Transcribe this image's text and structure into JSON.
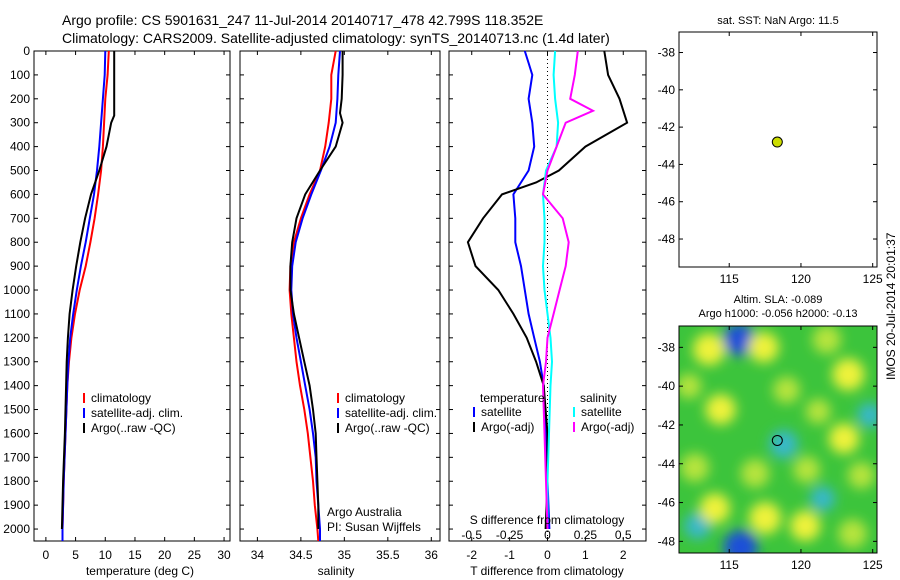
{
  "figure": {
    "title_line1": "Argo profile: CS 5901631_247 11-Jul-2014 20140717_478 42.799S 118.352E",
    "title_line2": "Climatology: CARS2009. Satellite-adjusted climatology: synTS_20140713.nc (1.4d later)",
    "side_label": "IMOS 20-Jul-2014 20:01:37",
    "credit_line1": "Argo Australia",
    "credit_line2": "PI: Susan Wijffels",
    "sst_title": "sat. SST: NaN Argo: 11.5",
    "sla_title1": "Altim. SLA: -0.089",
    "sla_title2": "Argo h1000: -0.056 h2000: -0.13"
  },
  "colors": {
    "climatology": "#ff0000",
    "satellite": "#0000ff",
    "argo": "#000000",
    "salinity_satellite": "#00ffff",
    "salinity_argo": "#ff00ff",
    "marker": "#ccdd00"
  },
  "chart_data": [
    {
      "type": "line",
      "xlabel": "temperature (deg C)",
      "ylabel": "",
      "xlim": [
        -2,
        31
      ],
      "ylim": [
        2050,
        0
      ],
      "xticks": [
        0,
        5,
        10,
        15,
        20,
        25,
        30
      ],
      "yticks": [
        0,
        100,
        200,
        300,
        400,
        500,
        600,
        700,
        800,
        900,
        1000,
        1100,
        1200,
        1300,
        1400,
        1500,
        1600,
        1700,
        1800,
        1900,
        2000
      ],
      "legend": [
        "climatology",
        "satellite-adj. clim.",
        "Argo(..raw -QC)"
      ],
      "series": [
        {
          "name": "climatology",
          "depth": [
            0,
            100,
            200,
            300,
            400,
            500,
            600,
            700,
            800,
            900,
            1000,
            1100,
            1200,
            1300,
            1400,
            1600,
            1800,
            2000,
            2050
          ],
          "values": [
            10.6,
            10.4,
            10.0,
            9.8,
            9.6,
            9.3,
            8.8,
            8.2,
            7.5,
            6.7,
            5.7,
            4.9,
            4.3,
            3.9,
            3.6,
            3.3,
            3.0,
            2.8,
            2.8
          ]
        },
        {
          "name": "satellite-adj. clim.",
          "depth": [
            0,
            100,
            200,
            300,
            400,
            500,
            600,
            700,
            800,
            900,
            1000,
            1100,
            1200,
            1300,
            1400,
            1600,
            1800,
            2000,
            2050
          ],
          "values": [
            10.0,
            9.9,
            9.6,
            9.3,
            9.0,
            8.6,
            8.1,
            7.4,
            6.7,
            5.9,
            5.2,
            4.6,
            4.1,
            3.8,
            3.6,
            3.3,
            3.0,
            2.8,
            2.8
          ]
        },
        {
          "name": "Argo(..raw -QC)",
          "depth": [
            0,
            100,
            200,
            270,
            300,
            400,
            500,
            600,
            700,
            800,
            900,
            1000,
            1100,
            1200,
            1300,
            1400,
            1600,
            1800,
            2000
          ],
          "values": [
            11.5,
            11.5,
            11.5,
            11.5,
            11.0,
            10.2,
            9.0,
            7.6,
            6.6,
            5.8,
            5.1,
            4.5,
            4.0,
            3.7,
            3.5,
            3.4,
            3.2,
            2.9,
            2.7
          ]
        }
      ]
    },
    {
      "type": "line",
      "xlabel": "salinity",
      "ylabel": "",
      "xlim": [
        33.8,
        36.1
      ],
      "ylim": [
        2050,
        0
      ],
      "xticks": [
        34,
        34.5,
        35,
        35.5,
        36
      ],
      "legend": [
        "climatology",
        "satellite-adj. clim.",
        "Argo(..raw -QC)"
      ],
      "series": [
        {
          "name": "climatology",
          "depth": [
            0,
            100,
            200,
            300,
            400,
            500,
            600,
            700,
            800,
            900,
            1000,
            1100,
            1200,
            1300,
            1400,
            1500,
            1600,
            1700,
            1800,
            1900,
            2000,
            2050
          ],
          "values": [
            34.9,
            34.85,
            34.85,
            34.82,
            34.78,
            34.72,
            34.6,
            34.5,
            34.42,
            34.38,
            34.37,
            34.39,
            34.42,
            34.45,
            34.49,
            34.54,
            34.58,
            34.61,
            34.64,
            34.66,
            34.69,
            34.7
          ]
        },
        {
          "name": "satellite-adj. clim.",
          "depth": [
            0,
            100,
            200,
            300,
            400,
            500,
            600,
            700,
            800,
            900,
            1000,
            1100,
            1200,
            1300,
            1400,
            1500,
            1600,
            1700,
            1800,
            1900,
            2000,
            2050
          ],
          "values": [
            34.95,
            34.93,
            34.92,
            34.9,
            34.83,
            34.73,
            34.62,
            34.52,
            34.44,
            34.4,
            34.39,
            34.41,
            34.45,
            34.5,
            34.55,
            34.6,
            34.64,
            34.67,
            34.68,
            34.7,
            34.72,
            34.72
          ]
        },
        {
          "name": "Argo(..raw -QC)",
          "depth": [
            0,
            100,
            200,
            260,
            300,
            400,
            500,
            600,
            700,
            800,
            900,
            1000,
            1100,
            1200,
            1300,
            1400,
            1500,
            1600,
            1700,
            1800,
            1900,
            2000
          ],
          "values": [
            34.98,
            34.98,
            34.97,
            34.95,
            34.98,
            34.9,
            34.72,
            34.55,
            34.45,
            34.4,
            34.38,
            34.38,
            34.42,
            34.48,
            34.54,
            34.6,
            34.64,
            34.67,
            34.68,
            34.69,
            34.7,
            34.7
          ]
        }
      ]
    },
    {
      "type": "line",
      "xlabel": "T difference from climatology",
      "xlabel2": "S difference from climatology",
      "xlim": [
        -2.6,
        2.6
      ],
      "ylim": [
        2050,
        0
      ],
      "xticks": [
        -2,
        -1,
        0,
        1,
        2
      ],
      "xticks2": [
        -0.5,
        -0.25,
        0,
        0.25,
        0.5
      ],
      "xticklabels2": [
        "-0.5",
        "-0.25",
        "0",
        "0.25",
        "0.5"
      ],
      "legend_temperature_header": "temperature",
      "legend_salinity_header": "salinity",
      "legend_temperature": [
        "satellite",
        "Argo(-adj)"
      ],
      "legend_salinity": [
        "satellite",
        "Argo(-adj)"
      ],
      "series": [
        {
          "name": "temperature satellite",
          "depth": [
            0,
            50,
            100,
            200,
            300,
            400,
            500,
            600,
            700,
            800,
            900,
            1000,
            1100,
            1200,
            1300,
            1400,
            1600,
            1800,
            2000
          ],
          "values": [
            -0.6,
            -0.5,
            -0.4,
            -0.5,
            -0.4,
            -0.35,
            -0.5,
            -0.9,
            -0.85,
            -0.85,
            -0.7,
            -0.6,
            -0.5,
            -0.35,
            -0.2,
            -0.1,
            -0.05,
            0.0,
            0.05
          ]
        },
        {
          "name": "temperature Argo(-adj)",
          "depth": [
            0,
            100,
            200,
            300,
            400,
            500,
            550,
            600,
            700,
            800,
            900,
            1000,
            1100,
            1200,
            1300,
            1400,
            1600,
            1800,
            2000
          ],
          "values": [
            1.5,
            1.6,
            1.9,
            2.1,
            1.0,
            0.3,
            -0.3,
            -1.2,
            -1.7,
            -2.1,
            -1.9,
            -1.3,
            -0.9,
            -0.55,
            -0.3,
            -0.1,
            0.0,
            0.0,
            -0.05
          ]
        },
        {
          "name": "salinity satellite",
          "depth": [
            0,
            100,
            200,
            300,
            400,
            500,
            600,
            700,
            800,
            900,
            1000,
            1100,
            1200,
            1300,
            1400,
            1600,
            1800,
            2000
          ],
          "values": [
            0.05,
            0.04,
            0.05,
            0.07,
            0.06,
            -0.01,
            -0.03,
            -0.02,
            -0.02,
            -0.03,
            -0.02,
            0.0,
            0.02,
            0.03,
            0.02,
            0.01,
            0.0,
            0.0
          ]
        },
        {
          "name": "salinity Argo(-adj)",
          "depth": [
            0,
            100,
            200,
            250,
            300,
            400,
            500,
            600,
            700,
            800,
            900,
            1000,
            1100,
            1200,
            1300,
            1400,
            1600,
            1800,
            2000
          ],
          "values": [
            0.2,
            0.18,
            0.15,
            0.3,
            0.12,
            0.06,
            0.0,
            -0.03,
            0.1,
            0.14,
            0.12,
            0.08,
            0.04,
            0.0,
            -0.01,
            -0.03,
            -0.02,
            -0.01,
            0.0
          ]
        }
      ]
    },
    {
      "type": "scatter",
      "title": "sat. SST: NaN Argo: 11.5",
      "xlim": [
        111.5,
        125.3
      ],
      "ylim": [
        -49.5,
        -36.9
      ],
      "xticks": [
        115,
        120,
        125
      ],
      "yticks": [
        -38,
        -40,
        -42,
        -44,
        -46,
        -48
      ],
      "points": [
        {
          "lon": 118.352,
          "lat": -42.799
        }
      ]
    },
    {
      "type": "heatmap",
      "title": "Altim. SLA: -0.089 / Argo h1000: -0.056 h2000: -0.13",
      "xlim": [
        111.5,
        125.3
      ],
      "ylim": [
        -48.6,
        -36.9
      ],
      "xticks": [
        115,
        120,
        125
      ],
      "yticks": [
        -38,
        -40,
        -42,
        -44,
        -46,
        -48
      ],
      "points": [
        {
          "lon": 118.352,
          "lat": -42.799
        }
      ],
      "blobs": [
        {
          "lon": 115.8,
          "lat": -48.3,
          "level": -1.0
        },
        {
          "lon": 115.7,
          "lat": -37.6,
          "level": -0.9
        },
        {
          "lon": 118.8,
          "lat": -43.0,
          "level": -0.7
        },
        {
          "lon": 112.8,
          "lat": -47.2,
          "level": -0.6
        },
        {
          "lon": 121.5,
          "lat": -45.8,
          "level": -0.5
        },
        {
          "lon": 124.8,
          "lat": -41.5,
          "level": -0.5
        },
        {
          "lon": 113.6,
          "lat": -38.1,
          "level": 0.9
        },
        {
          "lon": 117.4,
          "lat": -38.0,
          "level": 0.8
        },
        {
          "lon": 121.8,
          "lat": -37.6,
          "level": 0.7
        },
        {
          "lon": 123.3,
          "lat": -39.4,
          "level": 0.9
        },
        {
          "lon": 114.4,
          "lat": -41.2,
          "level": 0.8
        },
        {
          "lon": 119.0,
          "lat": -40.2,
          "level": 0.6
        },
        {
          "lon": 123.0,
          "lat": -42.7,
          "level": 0.8
        },
        {
          "lon": 112.6,
          "lat": -44.2,
          "level": 0.7
        },
        {
          "lon": 116.8,
          "lat": -44.5,
          "level": 0.7
        },
        {
          "lon": 120.4,
          "lat": -44.3,
          "level": 0.6
        },
        {
          "lon": 124.2,
          "lat": -44.6,
          "level": 0.6
        },
        {
          "lon": 114.0,
          "lat": -46.3,
          "level": 0.8
        },
        {
          "lon": 117.5,
          "lat": -46.8,
          "level": 0.9
        },
        {
          "lon": 120.3,
          "lat": -47.2,
          "level": 0.8
        },
        {
          "lon": 123.6,
          "lat": -47.6,
          "level": 0.7
        },
        {
          "lon": 112.2,
          "lat": -40.0,
          "level": 0.5
        },
        {
          "lon": 121.2,
          "lat": -41.3,
          "level": 0.5
        }
      ]
    }
  ]
}
